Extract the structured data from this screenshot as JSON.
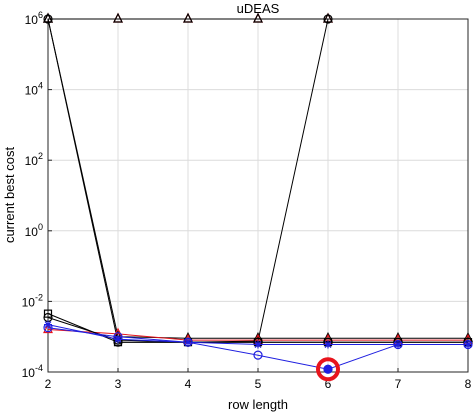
{
  "chart_data": {
    "type": "line",
    "title": "uDEAS",
    "xlabel": "row length",
    "ylabel": "current best cost",
    "xlim": [
      2,
      8
    ],
    "ylim_log10": [
      -4,
      6
    ],
    "yscale": "log",
    "grid": true,
    "x_ticks": [
      "2",
      "3",
      "4",
      "5",
      "6",
      "7",
      "8"
    ],
    "y_ticks": [
      {
        "exp": 6,
        "base": "10",
        "sup": "6"
      },
      {
        "exp": 4,
        "base": "10",
        "sup": "4"
      },
      {
        "exp": 2,
        "base": "10",
        "sup": "2"
      },
      {
        "exp": 0,
        "base": "10",
        "sup": "0"
      },
      {
        "exp": -2,
        "base": "10",
        "sup": "-2"
      },
      {
        "exp": -4,
        "base": "10",
        "sup": "-4"
      }
    ],
    "x": [
      2,
      3,
      4,
      5,
      6,
      7,
      8
    ],
    "series": [
      {
        "color": "#e8141c",
        "marker": "triangle",
        "values": [
          1000000,
          1000000,
          1000000,
          1000000,
          1000000,
          null,
          null
        ]
      },
      {
        "color": "#000000",
        "marker": "triangle",
        "values": [
          1000000,
          1000000,
          1000000,
          1000000,
          1000000,
          null,
          null
        ]
      },
      {
        "color": "#000000",
        "marker": "circle",
        "values": [
          1000000,
          0.0007,
          0.0007,
          0.00075,
          1000000,
          null,
          null
        ]
      },
      {
        "color": "#000000",
        "marker": "triangle",
        "values": [
          1000000,
          0.001,
          0.0009,
          0.0009,
          0.0009,
          0.0009,
          0.0009
        ]
      },
      {
        "color": "#e8141c",
        "marker": "triangle",
        "values": [
          0.0016,
          0.0012,
          0.0008,
          0.0008,
          0.0008,
          0.0008,
          0.0008
        ]
      },
      {
        "color": "#000000",
        "marker": "square",
        "values": [
          0.0045,
          0.0007,
          0.0007,
          0.0007,
          0.0007,
          0.0007,
          0.0007
        ]
      },
      {
        "color": "#000000",
        "marker": "circle",
        "values": [
          0.0035,
          0.0008,
          0.0007,
          0.0007,
          0.0007,
          0.0007,
          0.0007
        ]
      },
      {
        "color": "#1f1fe0",
        "marker": "cross",
        "values": [
          0.0022,
          0.00085,
          0.0007,
          0.0006,
          0.0006,
          0.0006,
          0.0006
        ]
      },
      {
        "color": "#1f1fe0",
        "marker": "circle",
        "values": [
          0.0018,
          0.001,
          0.0007,
          0.0003,
          0.00012,
          0.0006,
          0.0006
        ]
      }
    ],
    "highlight": {
      "x": 6,
      "y": 0.00012,
      "color": "#e8141c"
    }
  }
}
